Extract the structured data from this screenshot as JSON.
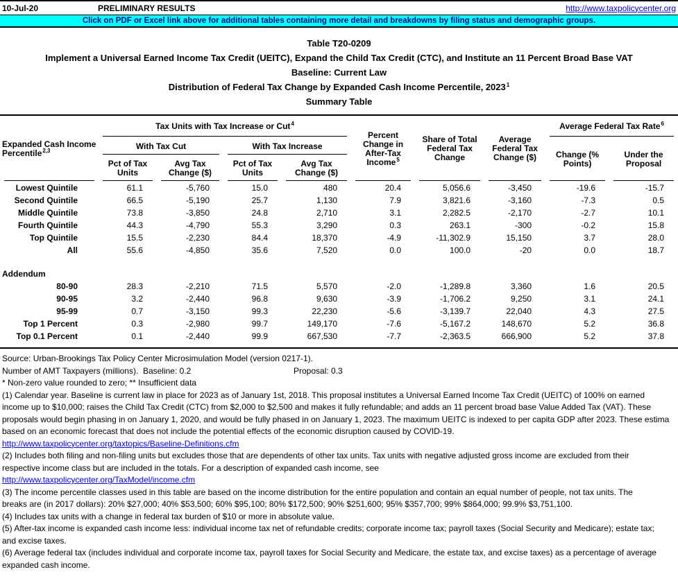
{
  "colors": {
    "banner_bg": "#00FFFF",
    "banner_text": "#00008B",
    "link": "#0000EE"
  },
  "header": {
    "date": "10-Jul-20",
    "preliminary": "PRELIMINARY RESULTS",
    "site_link": "http://www.taxpolicycenter.org",
    "banner": "Click on PDF or Excel link above for additional tables containing more detail and breakdowns by filing status and demographic groups."
  },
  "title": {
    "table_number": "Table T20-0209",
    "proposal": "Implement a Universal Earned Income Tax Credit (UEITC), Expand the Child Tax Credit (CTC), and Institute an 11 Percent Broad Base VAT",
    "baseline": "Baseline: Current Law",
    "distribution": "Distribution of Federal Tax Change by Expanded Cash Income Percentile, 2023",
    "distribution_sup": "1",
    "summary": "Summary Table"
  },
  "headers": {
    "stub": [
      "Expanded Cash Income",
      "Percentile"
    ],
    "stub_sup": "2,3",
    "tax_units_group": "Tax Units with Tax Increase or Cut",
    "tax_units_group_sup": "4",
    "with_tax_cut": "With Tax Cut",
    "with_tax_increase": "With Tax Increase",
    "pct_of_tax_units": [
      "Pct of Tax",
      "Units"
    ],
    "avg_tax_change": [
      "Avg Tax",
      "Change ($)"
    ],
    "pct_change_after_tax_income": [
      "Percent",
      "Change in",
      "After-Tax",
      "Income"
    ],
    "pct_change_sup": "5",
    "share_of_total": [
      "Share of Total",
      "Federal Tax",
      "Change"
    ],
    "avg_federal_tax_change": [
      "Average",
      "Federal Tax",
      "Change ($)"
    ],
    "rate_group": "Average Federal Tax Rate",
    "rate_group_sup": "6",
    "rate_change": [
      "Change (%",
      "Points)"
    ],
    "rate_under": [
      "Under the",
      "Proposal"
    ]
  },
  "table": {
    "rows": [
      {
        "label": "Lowest Quintile",
        "cells": [
          "61.1",
          "-5,760",
          "15.0",
          "480",
          "20.4",
          "5,056.6",
          "-3,450",
          "-19.6",
          "-15.7"
        ]
      },
      {
        "label": "Second Quintile",
        "cells": [
          "66.5",
          "-5,190",
          "25.7",
          "1,130",
          "7.9",
          "3,821.6",
          "-3,160",
          "-7.3",
          "0.5"
        ]
      },
      {
        "label": "Middle Quintile",
        "cells": [
          "73.8",
          "-3,850",
          "24.8",
          "2,710",
          "3.1",
          "2,282.5",
          "-2,170",
          "-2.7",
          "10.1"
        ]
      },
      {
        "label": "Fourth Quintile",
        "cells": [
          "44.3",
          "-4,790",
          "55.3",
          "3,290",
          "0.3",
          "263.1",
          "-300",
          "-0.2",
          "15.8"
        ]
      },
      {
        "label": "Top Quintile",
        "cells": [
          "15.5",
          "-2,230",
          "84.4",
          "18,370",
          "-4.9",
          "-11,302.9",
          "15,150",
          "3.7",
          "28.0"
        ]
      },
      {
        "label": "All",
        "cells": [
          "55.6",
          "-4,850",
          "35.6",
          "7,520",
          "0.0",
          "100.0",
          "-20",
          "0.0",
          "18.7"
        ]
      }
    ],
    "addendum_label": "Addendum",
    "addendum_rows": [
      {
        "label": "80-90",
        "cells": [
          "28.3",
          "-2,210",
          "71.5",
          "5,570",
          "-2.0",
          "-1,289.8",
          "3,360",
          "1.6",
          "20.5"
        ]
      },
      {
        "label": "90-95",
        "cells": [
          "3.2",
          "-2,440",
          "96.8",
          "9,630",
          "-3.9",
          "-1,706.2",
          "9,250",
          "3.1",
          "24.1"
        ]
      },
      {
        "label": "95-99",
        "cells": [
          "0.7",
          "-3,150",
          "99.3",
          "22,230",
          "-5.6",
          "-3,139.7",
          "22,040",
          "4.3",
          "27.5"
        ]
      },
      {
        "label": "Top 1 Percent",
        "cells": [
          "0.3",
          "-2,980",
          "99.7",
          "149,170",
          "-7.6",
          "-5,167.2",
          "148,670",
          "5.2",
          "36.8"
        ]
      },
      {
        "label": "Top 0.1 Percent",
        "cells": [
          "0.1",
          "-2,440",
          "99.9",
          "667,530",
          "-7.7",
          "-2,363.5",
          "666,900",
          "5.2",
          "37.8"
        ]
      }
    ]
  },
  "notes_top": {
    "source": "Source: Urban-Brookings Tax Policy Center Microsimulation Model (version 0217-1).",
    "amt_left": "Number of AMT Taxpayers (millions).  Baseline: 0.2",
    "amt_proposal": "Proposal: 0.3",
    "rounding": "* Non-zero value rounded to zero; ** Insufficient data"
  },
  "footnotes": [
    {
      "text": "(1) Calendar year. Baseline is current law in place for 2023 as of January 1st, 2018. This proposal institutes a Universal Earned Income Tax Credit (UEITC) of 100% on earned"
    },
    {
      "text": "income up to $10,000; raises the Child Tax Credit (CTC) from $2,000 to $2,500 and makes it fully refundable; and adds an 11 percent broad base Value Added Tax (VAT). These"
    },
    {
      "text": "proposals would begin phasing in on January 1, 2020, and would be fully phased in on January 1, 2023. The maximum UEITC is indexed to per capita GDP after 2023. These estima"
    },
    {
      "text": "based on an economic forecast that does not include the potential effects of the economic disruption caused by COVID-19."
    },
    {
      "text": "http://www.taxpolicycenter.org/taxtopics/Baseline-Definitions.cfm",
      "link": true
    },
    {
      "text": "(2) Includes both filing and non-filing units but excludes those that are dependents of other tax units. Tax units with negative adjusted gross income are excluded from their"
    },
    {
      "text": "respective income class but are included in the totals. For a description of expanded cash income, see"
    },
    {
      "text": "http://www.taxpolicycenter.org/TaxModel/income.cfm",
      "link": true
    },
    {
      "text": "(3) The income percentile classes used in this table are based on the income distribution for the entire population and contain an equal number of people, not tax units. The"
    },
    {
      "text": "breaks are (in 2017 dollars): 20% $27,000; 40% $53,500; 60% $95,100; 80% $172,500; 90% $251,600; 95% $357,700; 99% $864,000; 99.9% $3,751,100."
    },
    {
      "text": "(4) Includes tax units with a change in federal tax burden of $10 or more in absolute value."
    },
    {
      "text": "(5) After-tax income is expanded cash income less: individual income tax net of refundable credits; corporate income tax; payroll taxes (Social Security and Medicare); estate tax;"
    },
    {
      "text": "and excise taxes."
    },
    {
      "text": "(6) Average federal tax (includes individual and corporate income tax, payroll taxes for Social Security and Medicare, the estate tax, and excise taxes) as a percentage of average"
    },
    {
      "text": "expanded cash income."
    }
  ]
}
